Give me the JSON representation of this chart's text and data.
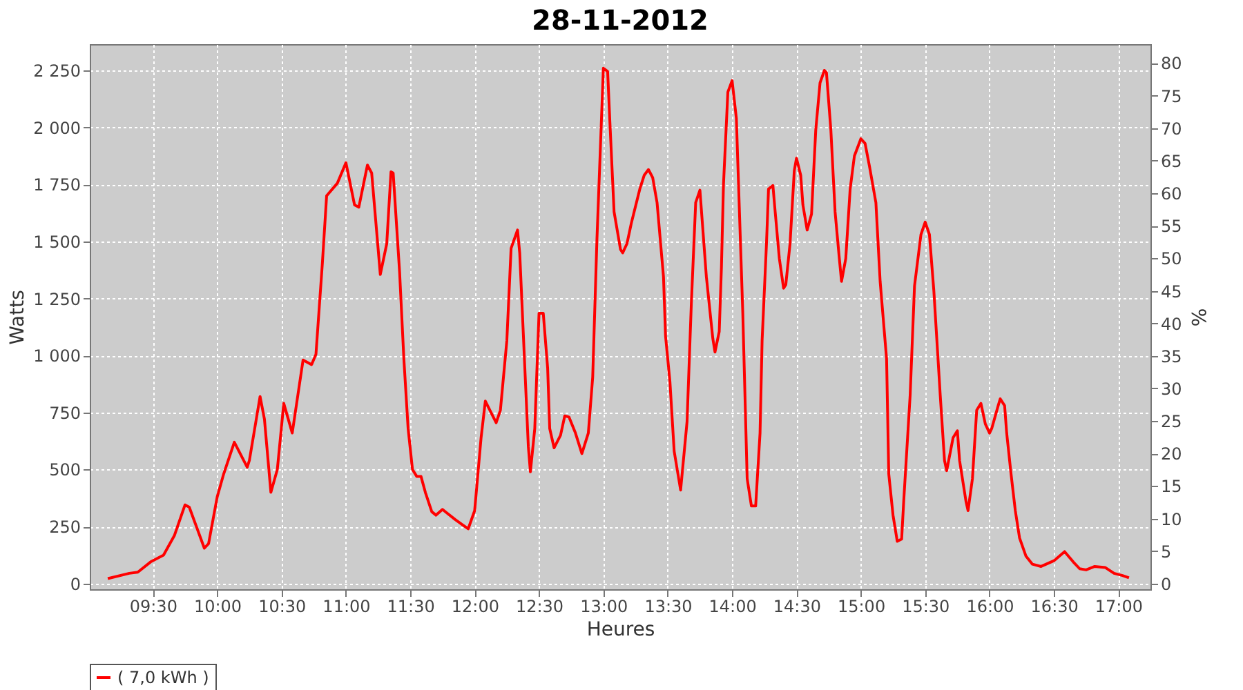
{
  "chart_data": {
    "type": "line",
    "title": "28-11-2012",
    "xlabel": "Heures",
    "ylabel": "Watts",
    "y2label": "%",
    "xlim": [
      9.01,
      17.25
    ],
    "xticks": [
      {
        "value": 9.5,
        "label": "09:30"
      },
      {
        "value": 10,
        "label": "10:00"
      },
      {
        "value": 10.5,
        "label": "10:30"
      },
      {
        "value": 11,
        "label": "11:00"
      },
      {
        "value": 11.5,
        "label": "11:30"
      },
      {
        "value": 12,
        "label": "12:00"
      },
      {
        "value": 12.5,
        "label": "12:30"
      },
      {
        "value": 13,
        "label": "13:00"
      },
      {
        "value": 13.5,
        "label": "13:30"
      },
      {
        "value": 14,
        "label": "14:00"
      },
      {
        "value": 14.5,
        "label": "14:30"
      },
      {
        "value": 15,
        "label": "15:00"
      },
      {
        "value": 15.5,
        "label": "15:30"
      },
      {
        "value": 16,
        "label": "16:00"
      },
      {
        "value": 16.5,
        "label": "16:30"
      },
      {
        "value": 17,
        "label": "17:00"
      }
    ],
    "ylim": [
      -25,
      2365
    ],
    "yticks": [
      0,
      250,
      500,
      750,
      {
        "value": 1000,
        "label": "1 000"
      },
      {
        "value": 1250,
        "label": "1 250"
      },
      {
        "value": 1500,
        "label": "1 500"
      },
      {
        "value": 1750,
        "label": "1 750"
      },
      {
        "value": 2000,
        "label": "2 000"
      },
      {
        "value": 2250,
        "label": "2 250"
      }
    ],
    "y2lim": [
      -0.85,
      82.9
    ],
    "y2ticks": [
      0,
      5,
      10,
      15,
      20,
      25,
      30,
      35,
      40,
      45,
      50,
      55,
      60,
      65,
      70,
      75,
      80
    ],
    "grid": true,
    "legend": "bottom",
    "marker": "none",
    "line_style": "solid",
    "series": [
      {
        "name": "( 7,0 kWh )",
        "color": "#ff0000",
        "x": [
          9.15,
          9.317,
          9.383,
          9.483,
          9.583,
          9.667,
          9.75,
          9.783,
          9.9,
          9.933,
          10.0,
          10.05,
          10.133,
          10.233,
          10.25,
          10.333,
          10.367,
          10.417,
          10.467,
          10.517,
          10.583,
          10.667,
          10.733,
          10.767,
          10.817,
          10.85,
          10.933,
          11.0,
          11.067,
          11.1,
          11.167,
          11.2,
          11.267,
          11.317,
          11.35,
          11.367,
          11.417,
          11.45,
          11.483,
          11.517,
          11.55,
          11.583,
          11.617,
          11.667,
          11.7,
          11.75,
          11.783,
          11.85,
          11.9,
          11.95,
          12.0,
          12.05,
          12.083,
          12.167,
          12.2,
          12.25,
          12.283,
          12.333,
          12.35,
          12.417,
          12.433,
          12.467,
          12.5,
          12.533,
          12.567,
          12.583,
          12.617,
          12.667,
          12.7,
          12.733,
          12.783,
          12.833,
          12.883,
          12.917,
          12.95,
          13.0,
          13.033,
          13.05,
          13.083,
          13.133,
          13.15,
          13.183,
          13.217,
          13.283,
          13.317,
          13.35,
          13.383,
          13.417,
          13.467,
          13.483,
          13.517,
          13.55,
          13.6,
          13.65,
          13.683,
          13.717,
          13.75,
          13.8,
          13.85,
          13.867,
          13.9,
          13.917,
          13.933,
          13.967,
          14.0,
          14.033,
          14.083,
          14.117,
          14.15,
          14.183,
          14.217,
          14.233,
          14.267,
          14.283,
          14.317,
          14.333,
          14.367,
          14.4,
          14.417,
          14.45,
          14.483,
          14.5,
          14.533,
          14.55,
          14.583,
          14.617,
          14.65,
          14.683,
          14.717,
          14.733,
          14.767,
          14.8,
          14.833,
          14.85,
          14.883,
          14.917,
          14.95,
          15.0,
          15.033,
          15.067,
          15.117,
          15.15,
          15.2,
          15.217,
          15.25,
          15.283,
          15.317,
          15.333,
          15.383,
          15.417,
          15.467,
          15.5,
          15.533,
          15.567,
          15.617,
          15.65,
          15.667,
          15.717,
          15.75,
          15.767,
          15.817,
          15.833,
          15.867,
          15.9,
          15.933,
          15.967,
          16.0,
          16.017,
          16.067,
          16.083,
          16.117,
          16.133,
          16.167,
          16.2,
          16.233,
          16.283,
          16.333,
          16.4,
          16.5,
          16.583,
          16.65,
          16.7,
          16.75,
          16.817,
          16.9,
          16.967,
          17.033,
          17.083
        ],
        "values": [
          22,
          45,
          50,
          95,
          125,
          210,
          345,
          335,
          155,
          175,
          380,
          480,
          620,
          510,
          540,
          820,
          720,
          400,
          500,
          790,
          660,
          980,
          960,
          1005,
          1405,
          1700,
          1755,
          1845,
          1660,
          1650,
          1835,
          1800,
          1355,
          1490,
          1805,
          1800,
          1365,
          985,
          680,
          500,
          470,
          470,
          400,
          315,
          300,
          325,
          310,
          280,
          260,
          240,
          320,
          640,
          800,
          705,
          760,
          1065,
          1470,
          1550,
          1450,
          600,
          490,
          680,
          1185,
          1185,
          945,
          680,
          595,
          650,
          735,
          730,
          660,
          570,
          660,
          905,
          1510,
          2260,
          2245,
          2030,
          1630,
          1465,
          1450,
          1490,
          1580,
          1730,
          1790,
          1815,
          1780,
          1670,
          1345,
          1085,
          885,
          580,
          410,
          710,
          1225,
          1670,
          1725,
          1345,
          1075,
          1015,
          1105,
          1385,
          1750,
          2155,
          2205,
          2040,
          1185,
          460,
          340,
          340,
          660,
          1065,
          1490,
          1730,
          1745,
          1640,
          1425,
          1295,
          1310,
          1490,
          1810,
          1865,
          1790,
          1660,
          1550,
          1620,
          1990,
          2195,
          2250,
          2240,
          1990,
          1630,
          1425,
          1325,
          1425,
          1730,
          1875,
          1950,
          1930,
          1830,
          1670,
          1325,
          985,
          480,
          300,
          185,
          195,
          360,
          825,
          1305,
          1530,
          1585,
          1530,
          1285,
          825,
          540,
          495,
          640,
          670,
          540,
          360,
          320,
          460,
          760,
          790,
          700,
          660,
          680,
          780,
          810,
          780,
          660,
          480,
          320,
          200,
          120,
          85,
          75,
          100,
          140,
          95,
          65,
          60,
          75,
          70,
          45,
          35,
          25
        ]
      }
    ]
  }
}
